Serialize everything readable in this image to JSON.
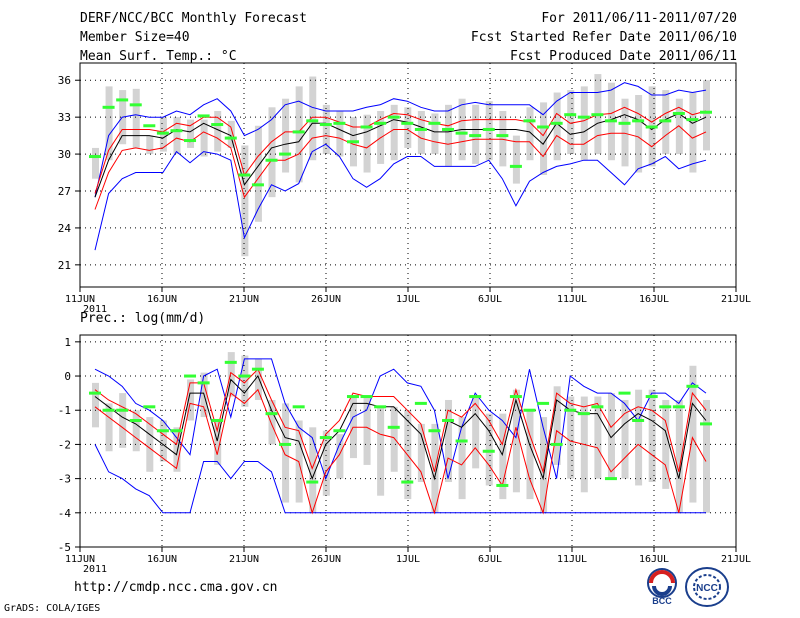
{
  "header": {
    "title": "DERF/NCC/BCC Monthly Forecast",
    "member_size": "Member Size=40",
    "variable": "Mean Surf. Temp.: °C",
    "period": "For 2011/06/11-2011/07/20",
    "started": "Fcst Started Refer Date 2011/06/10",
    "produced": "Fcst Produced Date 2011/06/11"
  },
  "footer": {
    "url": "http://cmdp.ncc.cma.gov.cn",
    "credit": "GrADS: COLA/IGES",
    "logo_bcc": "BCC",
    "logo_ncc": "NCC"
  },
  "colors": {
    "max_min": "#0000ff",
    "spread": "#ff0000",
    "mean": "#000000",
    "box": "#d3d3d3",
    "climate": "#33ff33"
  },
  "chart_data": [
    {
      "type": "line",
      "title": "Mean Surf. Temp.: °C",
      "xlabels": [
        "11JUN",
        "16JUN",
        "21JUN",
        "26JUN",
        "1JUL",
        "6JUL",
        "11JUL",
        "16JUL",
        "21JUL"
      ],
      "xlabel_year": "2011",
      "yticks": [
        21,
        24,
        27,
        30,
        33,
        36
      ],
      "ylim": [
        19.2,
        37.4
      ],
      "series": [
        {
          "name": "max",
          "values": [
            26.5,
            31.5,
            33.0,
            33.2,
            33.0,
            33.0,
            33.5,
            33.2,
            34.0,
            34.5,
            33.5,
            31.5,
            32.0,
            32.8,
            34.0,
            34.3,
            33.8,
            33.5,
            33.5,
            33.5,
            33.8,
            34.0,
            34.5,
            34.3,
            33.8,
            33.5,
            33.5,
            34.0,
            34.2,
            34.0,
            34.0,
            34.0,
            34.0,
            33.2,
            34.3,
            35.0,
            35.0,
            35.0,
            35.2,
            35.8,
            35.5,
            34.8,
            34.8,
            35.2,
            35.0,
            35.2
          ]
        },
        {
          "name": "spread_upper",
          "values": [
            26.8,
            30.3,
            32.0,
            32.0,
            32.0,
            31.8,
            32.5,
            32.3,
            33.0,
            33.0,
            32.2,
            28.3,
            29.8,
            31.0,
            31.8,
            31.8,
            33.0,
            33.0,
            32.6,
            32.2,
            32.2,
            32.8,
            33.3,
            33.2,
            32.8,
            32.5,
            32.3,
            32.7,
            32.8,
            32.8,
            32.8,
            32.8,
            32.6,
            31.5,
            33.3,
            32.5,
            32.7,
            33.2,
            33.3,
            33.8,
            33.3,
            32.6,
            33.3,
            33.8,
            33.2,
            33.5
          ]
        },
        {
          "name": "mean",
          "values": [
            26.5,
            29.5,
            31.5,
            31.5,
            31.5,
            31.3,
            32.0,
            31.8,
            32.5,
            32.0,
            31.5,
            27.5,
            29.0,
            30.5,
            30.8,
            31.0,
            32.5,
            32.5,
            32.0,
            31.5,
            31.8,
            32.3,
            32.8,
            32.6,
            32.2,
            31.8,
            31.8,
            32.0,
            32.0,
            32.0,
            32.0,
            32.0,
            31.8,
            30.8,
            32.5,
            31.6,
            31.8,
            32.5,
            32.8,
            33.2,
            32.8,
            32.0,
            32.8,
            33.3,
            32.5,
            33.0
          ]
        },
        {
          "name": "spread_lower",
          "values": [
            25.5,
            28.5,
            30.3,
            30.5,
            30.3,
            30.5,
            31.3,
            31.0,
            31.8,
            31.3,
            30.5,
            26.5,
            28.0,
            29.5,
            29.5,
            30.0,
            31.3,
            31.5,
            31.3,
            30.8,
            30.5,
            31.3,
            32.0,
            32.0,
            31.3,
            31.0,
            30.8,
            31.0,
            31.2,
            31.2,
            31.2,
            31.0,
            31.0,
            29.8,
            31.5,
            30.8,
            30.8,
            31.5,
            31.7,
            31.7,
            31.4,
            30.6,
            31.5,
            32.3,
            31.3,
            31.8
          ]
        },
        {
          "name": "min",
          "values": [
            22.2,
            26.8,
            28.0,
            28.5,
            28.5,
            28.5,
            30.2,
            29.3,
            30.2,
            30.0,
            29.5,
            23.2,
            25.5,
            27.5,
            27.0,
            27.6,
            30.2,
            30.8,
            29.8,
            28.0,
            27.3,
            28.0,
            29.2,
            29.8,
            29.8,
            29.0,
            29.0,
            29.0,
            29.0,
            29.5,
            28.0,
            25.8,
            27.8,
            28.5,
            29.0,
            29.2,
            29.5,
            29.5,
            28.5,
            27.5,
            28.8,
            29.2,
            29.8,
            28.8,
            29.2,
            29.5
          ]
        },
        {
          "name": "box_top",
          "values": [
            30.5,
            35.5,
            35.2,
            35.3,
            31.5,
            33.0,
            33.0,
            32.8,
            32.8,
            33.5,
            32.7,
            30.7,
            32.3,
            33.8,
            34.5,
            35.5,
            36.3,
            34.0,
            33.5,
            33.0,
            33.2,
            33.5,
            34.0,
            33.8,
            33.5,
            33.3,
            34.0,
            34.5,
            34.0,
            34.3,
            33.5,
            31.5,
            33.8,
            34.2,
            35.0,
            35.2,
            35.5,
            36.5,
            35.8,
            34.5,
            34.8,
            35.5,
            35.2,
            34.5,
            35.0,
            36.0
          ]
        },
        {
          "name": "box_bottom",
          "values": [
            28.0,
            29.5,
            30.8,
            30.5,
            30.0,
            30.2,
            30.0,
            30.5,
            29.8,
            30.2,
            30.5,
            21.7,
            24.5,
            26.5,
            28.5,
            27.7,
            29.5,
            30.0,
            29.8,
            29.0,
            28.5,
            29.2,
            29.5,
            30.5,
            30.0,
            30.0,
            29.0,
            29.5,
            29.2,
            29.5,
            29.0,
            27.6,
            29.5,
            28.3,
            29.5,
            30.0,
            29.5,
            30.0,
            29.5,
            29.0,
            28.5,
            29.0,
            30.0,
            30.0,
            28.5,
            30.3
          ]
        },
        {
          "name": "climate",
          "values": [
            29.8,
            33.8,
            34.4,
            34.0,
            32.3,
            31.7,
            31.9,
            31.1,
            33.1,
            32.4,
            31.3,
            28.3,
            27.5,
            29.5,
            30.0,
            31.8,
            32.7,
            32.4,
            32.5,
            31.0,
            32.2,
            32.5,
            33.0,
            32.5,
            32.0,
            32.5,
            32.0,
            31.7,
            31.5,
            32.0,
            31.5,
            29.0,
            32.7,
            32.2,
            32.5,
            33.2,
            33.0,
            33.2,
            32.7,
            32.5,
            32.7,
            32.2,
            32.7,
            33.3,
            32.8,
            33.4
          ]
        }
      ]
    },
    {
      "type": "line",
      "title": "Prec.: log(mm/d)",
      "xlabels": [
        "11JUN",
        "16JUN",
        "21JUN",
        "26JUN",
        "1JUL",
        "6JUL",
        "11JUL",
        "16JUL",
        "21JUL"
      ],
      "xlabel_year": "2011",
      "yticks": [
        -5,
        -4,
        -3,
        -2,
        -1,
        0,
        1
      ],
      "ylim": [
        -5,
        1.2
      ],
      "series": [
        {
          "name": "max",
          "values": [
            0.2,
            0.0,
            -0.3,
            -0.8,
            -1.0,
            -1.3,
            -1.8,
            -2.3,
            0.0,
            0.2,
            -1.2,
            0.5,
            0.5,
            0.5,
            -0.8,
            -1.5,
            -1.8,
            -3.0,
            -2.0,
            -1.2,
            -1.0,
            0.0,
            0.2,
            -0.2,
            -0.3,
            -1.0,
            -3.0,
            -1.5,
            -0.5,
            -1.0,
            -1.3,
            -1.8,
            0.2,
            -1.5,
            -3.0,
            0.0,
            -0.3,
            -0.5,
            -0.5,
            -0.8,
            -1.3,
            -0.5,
            -0.5,
            -0.8,
            -0.2,
            -0.5
          ]
        },
        {
          "name": "spread_upper",
          "values": [
            -0.4,
            -0.7,
            -0.9,
            -1.1,
            -1.4,
            -1.7,
            -2.0,
            -0.2,
            -0.2,
            -1.6,
            0.1,
            -0.2,
            0.2,
            -0.7,
            -1.5,
            -1.6,
            -2.7,
            -1.7,
            -1.3,
            -0.5,
            -0.6,
            -0.6,
            -0.6,
            -1.0,
            -1.4,
            -2.8,
            -1.0,
            -1.2,
            -0.8,
            -1.3,
            -2.0,
            -0.4,
            -1.7,
            -2.8,
            -0.5,
            -0.8,
            -0.9,
            -0.8,
            -1.5,
            -1.1,
            -0.9,
            -1.0,
            -1.3,
            -2.8,
            -0.5,
            -1.0
          ]
        },
        {
          "name": "mean",
          "values": [
            -0.6,
            -0.9,
            -1.2,
            -1.4,
            -1.7,
            -2.0,
            -2.3,
            -0.5,
            -0.5,
            -1.9,
            -0.1,
            -0.5,
            0.0,
            -1.0,
            -1.8,
            -1.9,
            -3.0,
            -2.0,
            -1.6,
            -0.8,
            -0.8,
            -0.9,
            -0.9,
            -1.3,
            -1.7,
            -3.0,
            -1.3,
            -1.5,
            -1.1,
            -1.6,
            -2.3,
            -0.7,
            -2.0,
            -3.0,
            -0.7,
            -1.0,
            -1.1,
            -1.1,
            -1.8,
            -1.4,
            -1.1,
            -1.3,
            -1.6,
            -3.0,
            -0.8,
            -1.3
          ]
        },
        {
          "name": "spread_lower",
          "values": [
            -0.9,
            -1.2,
            -1.5,
            -1.8,
            -2.1,
            -2.4,
            -2.7,
            -0.8,
            -0.9,
            -2.3,
            -0.5,
            -0.8,
            -0.4,
            -1.4,
            -2.3,
            -2.5,
            -4.0,
            -2.8,
            -2.3,
            -1.5,
            -1.5,
            -1.7,
            -1.8,
            -2.3,
            -2.8,
            -4.0,
            -2.4,
            -2.6,
            -2.1,
            -2.6,
            -3.2,
            -1.5,
            -3.0,
            -4.0,
            -1.6,
            -1.9,
            -2.0,
            -2.1,
            -2.8,
            -2.4,
            -2.0,
            -2.3,
            -2.6,
            -4.0,
            -1.8,
            -2.5
          ]
        },
        {
          "name": "min",
          "values": [
            -2.0,
            -2.8,
            -3.0,
            -3.3,
            -3.5,
            -4.0,
            -4.0,
            -4.0,
            -2.5,
            -2.5,
            -3.0,
            -2.5,
            -2.5,
            -2.8,
            -4.0,
            -4.0,
            -4.0,
            -4.0,
            -4.0,
            -4.0,
            -4.0,
            -4.0,
            -4.0,
            -4.0,
            -4.0,
            -4.0,
            -4.0,
            -4.0,
            -4.0,
            -4.0,
            -4.0,
            -4.0,
            -4.0,
            -4.0,
            -4.0,
            -4.0,
            -4.0,
            -4.0,
            -4.0,
            -4.0,
            -4.0,
            -4.0,
            -4.0,
            -4.0,
            -4.0,
            -4.0
          ]
        },
        {
          "name": "box_top",
          "values": [
            -0.2,
            -0.8,
            -0.5,
            -1.0,
            -1.2,
            -1.3,
            -1.5,
            -0.1,
            0.1,
            -1.3,
            0.7,
            0.6,
            0.5,
            -0.7,
            -0.8,
            -1.3,
            -1.5,
            -1.6,
            -1.7,
            -0.6,
            -0.6,
            -0.9,
            -0.9,
            -1.0,
            -1.4,
            -1.4,
            -0.7,
            -1.2,
            -0.6,
            -1.1,
            -1.1,
            -0.4,
            -1.0,
            -1.2,
            -0.3,
            -0.6,
            -0.6,
            -0.6,
            -0.5,
            -0.7,
            -0.4,
            -0.4,
            -0.7,
            -0.7,
            0.3,
            -0.7
          ]
        },
        {
          "name": "box_bottom",
          "values": [
            -1.5,
            -2.2,
            -2.1,
            -2.2,
            -2.8,
            -2.5,
            -2.8,
            -1.3,
            -1.2,
            -2.6,
            -0.6,
            -0.9,
            -0.7,
            -2.0,
            -3.7,
            -3.7,
            -4.0,
            -3.5,
            -3.0,
            -2.4,
            -2.6,
            -3.5,
            -2.8,
            -3.6,
            -3.1,
            -4.0,
            -3.1,
            -3.6,
            -2.7,
            -3.2,
            -3.6,
            -3.4,
            -3.6,
            -4.0,
            -2.6,
            -3.0,
            -3.4,
            -3.0,
            -3.0,
            -3.0,
            -3.2,
            -3.1,
            -3.3,
            -4.0,
            -3.7,
            -4.0
          ]
        },
        {
          "name": "climate",
          "values": [
            -0.5,
            -1.0,
            -1.0,
            -1.3,
            -0.9,
            -1.6,
            -1.6,
            0.0,
            -0.2,
            -1.3,
            0.4,
            0.0,
            0.2,
            -1.1,
            -2.0,
            -0.9,
            -3.1,
            -1.8,
            -1.6,
            -0.6,
            -0.6,
            -0.9,
            -1.5,
            -3.1,
            -0.8,
            -1.6,
            -1.3,
            -1.9,
            -0.6,
            -2.2,
            -3.2,
            -0.6,
            -1.0,
            -0.8,
            -2.0,
            -1.0,
            -1.1,
            -0.9,
            -3.0,
            -0.5,
            -1.3,
            -0.6,
            -0.9,
            -0.9,
            -0.3,
            -1.4
          ]
        }
      ]
    }
  ]
}
